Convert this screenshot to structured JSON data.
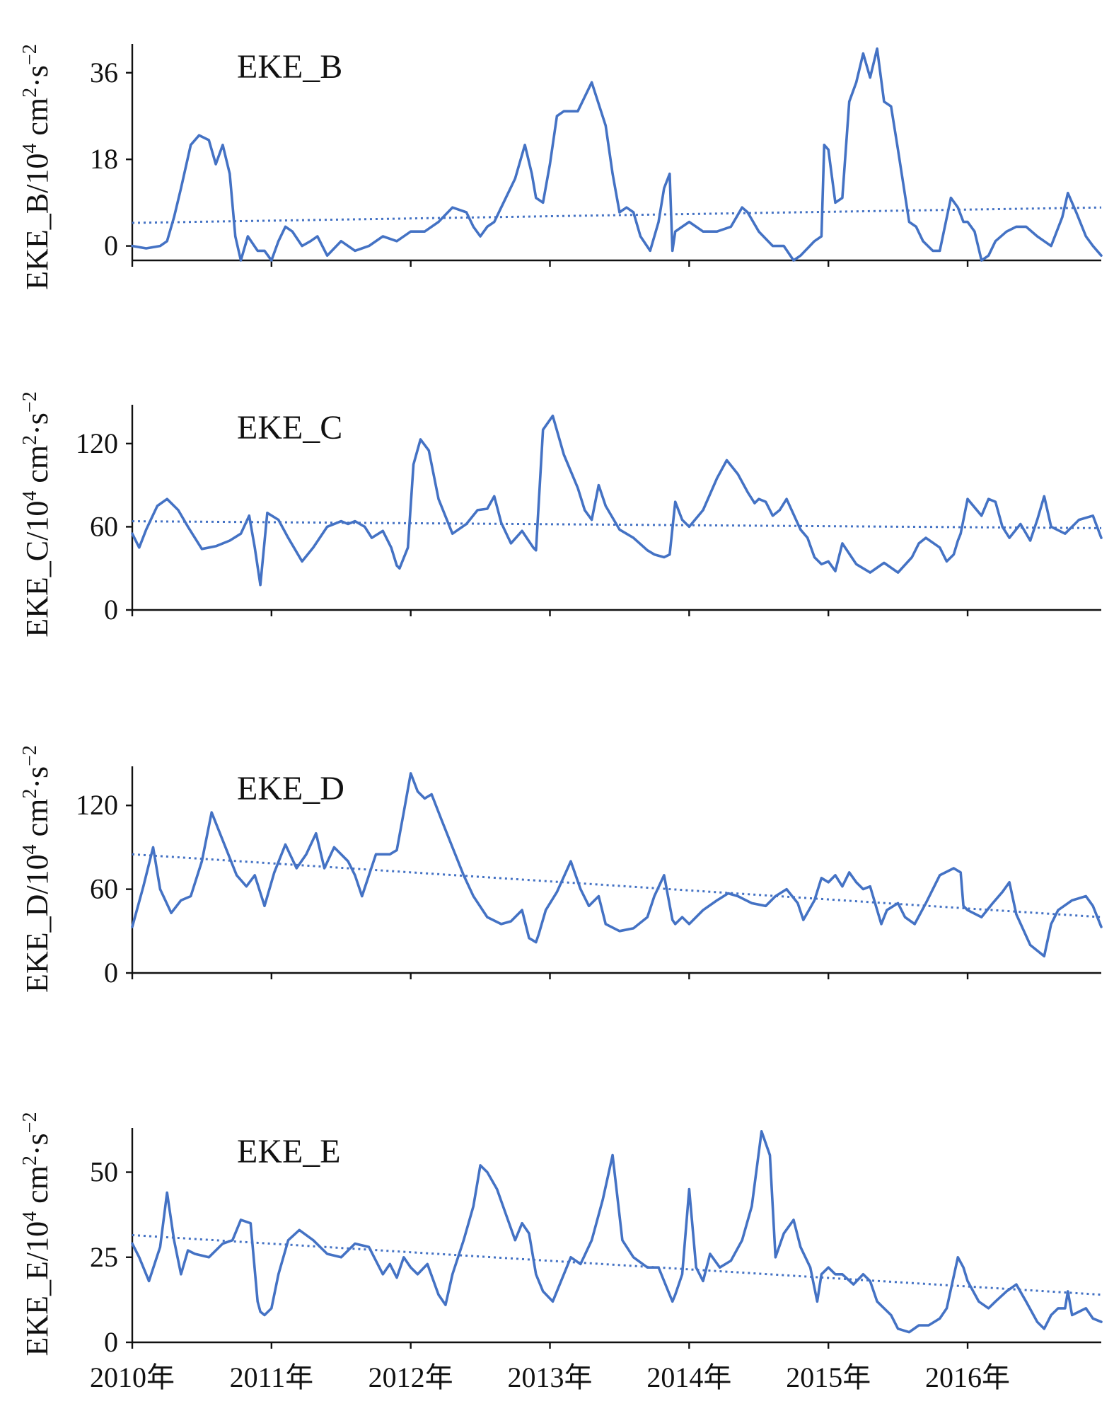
{
  "colors": {
    "series": "#4472c4",
    "axis": "#111111",
    "background": "#ffffff"
  },
  "chart_data": [
    {
      "type": "line",
      "title": "EKE_B",
      "ylabel": {
        "main": "EKE_B/10",
        "exp1": "4",
        "mid1": " cm",
        "exp2": "2",
        "mid2": "·s",
        "exp3": "−2"
      },
      "ylim": [
        -3,
        42
      ],
      "yticks": [
        0,
        18,
        36
      ],
      "xlim": [
        2010.0,
        2016.96
      ],
      "xticks": [
        2010,
        2011,
        2012,
        2013,
        2014,
        2015,
        2016
      ],
      "xtick_labels": [
        "2010年",
        "2011年",
        "2012年",
        "2013年",
        "2014年",
        "2015年",
        "2016年"
      ],
      "show_x_tick_labels": false,
      "grid": false,
      "legend": "none",
      "series": [
        {
          "x": [
            2010.0,
            2010.1,
            2010.2,
            2010.25,
            2010.3,
            2010.35,
            2010.42,
            2010.48,
            2010.55,
            2010.6,
            2010.65,
            2010.7,
            2010.74,
            2010.78,
            2010.83,
            2010.9,
            2010.95,
            2011.0,
            2011.05,
            2011.1,
            2011.15,
            2011.22,
            2011.28,
            2011.33,
            2011.4,
            2011.5,
            2011.6,
            2011.7,
            2011.8,
            2011.9,
            2012.0,
            2012.1,
            2012.2,
            2012.3,
            2012.4,
            2012.45,
            2012.5,
            2012.55,
            2012.6,
            2012.65,
            2012.75,
            2012.82,
            2012.87,
            2012.9,
            2012.95,
            2013.0,
            2013.05,
            2013.1,
            2013.2,
            2013.3,
            2013.4,
            2013.45,
            2013.5,
            2013.55,
            2013.6,
            2013.65,
            2013.72,
            2013.78,
            2013.82,
            2013.86,
            2013.88,
            2013.9,
            2013.95,
            2014.0,
            2014.05,
            2014.1,
            2014.2,
            2014.3,
            2014.38,
            2014.42,
            2014.5,
            2014.6,
            2014.68,
            2014.75,
            2014.8,
            2014.9,
            2014.95,
            2014.97,
            2015.0,
            2015.05,
            2015.1,
            2015.15,
            2015.2,
            2015.25,
            2015.3,
            2015.35,
            2015.4,
            2015.45,
            2015.5,
            2015.58,
            2015.63,
            2015.68,
            2015.75,
            2015.8,
            2015.88,
            2015.93,
            2015.97,
            2016.0,
            2016.05,
            2016.1,
            2016.15,
            2016.2,
            2016.28,
            2016.35,
            2016.42,
            2016.5,
            2016.55,
            2016.6,
            2016.68,
            2016.72,
            2016.78,
            2016.85,
            2016.9,
            2016.96
          ],
          "y": [
            0,
            -0.5,
            0,
            1,
            6,
            12,
            21,
            23,
            22,
            17,
            21,
            15,
            2,
            -3,
            2,
            -1,
            -1,
            -3,
            1,
            4,
            3,
            0,
            1,
            2,
            -2,
            1,
            -1,
            0,
            2,
            1,
            3,
            3,
            5,
            8,
            7,
            4,
            2,
            4,
            5,
            8,
            14,
            21,
            15,
            10,
            9,
            17,
            27,
            28,
            28,
            34,
            25,
            15,
            7,
            8,
            7,
            2,
            -1,
            5,
            12,
            15,
            -1,
            3,
            4,
            5,
            4,
            3,
            3,
            4,
            8,
            7,
            3,
            0,
            0,
            -3,
            -2,
            1,
            2,
            21,
            20,
            9,
            10,
            30,
            34,
            40,
            35,
            41,
            30,
            29,
            20,
            5,
            4,
            1,
            -1,
            -1,
            10,
            8,
            5,
            5,
            3,
            -3,
            -2,
            1,
            3,
            4,
            4,
            2,
            1,
            0,
            6,
            11,
            7,
            2,
            0,
            -2
          ]
        }
      ],
      "trend": {
        "y_start": 4.8,
        "y_end": 8.0
      }
    },
    {
      "type": "line",
      "title": "EKE_C",
      "ylabel": {
        "main": "EKE_C/10",
        "exp1": "4",
        "mid1": " cm",
        "exp2": "2",
        "mid2": "·s",
        "exp3": "−2"
      },
      "ylim": [
        0,
        148
      ],
      "yticks": [
        0,
        60,
        120
      ],
      "xlim": [
        2010.0,
        2016.96
      ],
      "xticks": [
        2010,
        2011,
        2012,
        2013,
        2014,
        2015,
        2016
      ],
      "xtick_labels": [
        "2010年",
        "2011年",
        "2012年",
        "2013年",
        "2014年",
        "2015年",
        "2016年"
      ],
      "show_x_tick_labels": false,
      "grid": false,
      "legend": "none",
      "series": [
        {
          "x": [
            2010.0,
            2010.05,
            2010.1,
            2010.18,
            2010.25,
            2010.33,
            2010.4,
            2010.5,
            2010.6,
            2010.7,
            2010.78,
            2010.84,
            2010.88,
            2010.92,
            2010.97,
            2011.05,
            2011.12,
            2011.22,
            2011.3,
            2011.4,
            2011.5,
            2011.55,
            2011.6,
            2011.67,
            2011.72,
            2011.8,
            2011.86,
            2011.9,
            2011.92,
            2011.98,
            2012.02,
            2012.07,
            2012.13,
            2012.2,
            2012.3,
            2012.4,
            2012.48,
            2012.55,
            2012.6,
            2012.65,
            2012.72,
            2012.8,
            2012.88,
            2012.9,
            2012.95,
            2013.02,
            2013.1,
            2013.2,
            2013.25,
            2013.3,
            2013.35,
            2013.4,
            2013.5,
            2013.6,
            2013.7,
            2013.75,
            2013.82,
            2013.86,
            2013.9,
            2013.95,
            2014.0,
            2014.1,
            2014.2,
            2014.27,
            2014.35,
            2014.42,
            2014.47,
            2014.5,
            2014.55,
            2014.6,
            2014.65,
            2014.7,
            2014.8,
            2014.85,
            2014.9,
            2014.95,
            2015.0,
            2015.05,
            2015.1,
            2015.2,
            2015.3,
            2015.4,
            2015.5,
            2015.6,
            2015.65,
            2015.7,
            2015.8,
            2015.85,
            2015.9,
            2015.93,
            2015.95,
            2016.0,
            2016.1,
            2016.15,
            2016.2,
            2016.25,
            2016.3,
            2016.38,
            2016.45,
            2016.5,
            2016.55,
            2016.6,
            2016.7,
            2016.8,
            2016.9,
            2016.96
          ],
          "y": [
            55,
            45,
            58,
            75,
            80,
            72,
            60,
            44,
            46,
            50,
            55,
            68,
            45,
            18,
            70,
            65,
            52,
            35,
            45,
            60,
            64,
            62,
            64,
            60,
            52,
            57,
            45,
            32,
            30,
            45,
            105,
            123,
            115,
            80,
            55,
            62,
            72,
            73,
            82,
            63,
            48,
            57,
            45,
            43,
            130,
            140,
            112,
            88,
            72,
            65,
            90,
            75,
            58,
            52,
            43,
            40,
            38,
            40,
            78,
            65,
            60,
            72,
            95,
            108,
            98,
            85,
            77,
            80,
            78,
            68,
            72,
            80,
            58,
            52,
            38,
            33,
            35,
            28,
            48,
            33,
            27,
            34,
            27,
            38,
            48,
            52,
            45,
            35,
            40,
            50,
            55,
            80,
            68,
            80,
            78,
            60,
            52,
            62,
            50,
            65,
            82,
            60,
            55,
            65,
            68,
            52
          ]
        }
      ],
      "trend": {
        "y_start": 64,
        "y_end": 59
      }
    },
    {
      "type": "line",
      "title": "EKE_D",
      "ylabel": {
        "main": "EKE_D/10",
        "exp1": "4",
        "mid1": " cm",
        "exp2": "2",
        "mid2": "·s",
        "exp3": "−2"
      },
      "ylim": [
        0,
        148
      ],
      "yticks": [
        0,
        60,
        120
      ],
      "xlim": [
        2010.0,
        2016.96
      ],
      "xticks": [
        2010,
        2011,
        2012,
        2013,
        2014,
        2015,
        2016
      ],
      "xtick_labels": [
        "2010年",
        "2011年",
        "2012年",
        "2013年",
        "2014年",
        "2015年",
        "2016年"
      ],
      "show_x_tick_labels": false,
      "grid": false,
      "legend": "none",
      "series": [
        {
          "x": [
            2010.0,
            2010.08,
            2010.15,
            2010.2,
            2010.28,
            2010.35,
            2010.42,
            2010.5,
            2010.57,
            2010.65,
            2010.75,
            2010.82,
            2010.88,
            2010.95,
            2011.02,
            2011.1,
            2011.18,
            2011.25,
            2011.32,
            2011.38,
            2011.45,
            2011.55,
            2011.6,
            2011.65,
            2011.7,
            2011.75,
            2011.85,
            2011.9,
            2011.95,
            2012.0,
            2012.05,
            2012.1,
            2012.15,
            2012.22,
            2012.3,
            2012.38,
            2012.45,
            2012.55,
            2012.65,
            2012.72,
            2012.8,
            2012.85,
            2012.9,
            2012.92,
            2012.97,
            2013.05,
            2013.15,
            2013.22,
            2013.28,
            2013.35,
            2013.4,
            2013.5,
            2013.6,
            2013.7,
            2013.75,
            2013.82,
            2013.88,
            2013.9,
            2013.95,
            2014.0,
            2014.1,
            2014.2,
            2014.28,
            2014.35,
            2014.45,
            2014.55,
            2014.62,
            2014.7,
            2014.78,
            2014.82,
            2014.9,
            2014.95,
            2015.0,
            2015.05,
            2015.1,
            2015.15,
            2015.2,
            2015.25,
            2015.3,
            2015.38,
            2015.42,
            2015.5,
            2015.55,
            2015.62,
            2015.7,
            2015.8,
            2015.9,
            2015.95,
            2015.97,
            2016.0,
            2016.1,
            2016.18,
            2016.25,
            2016.3,
            2016.35,
            2016.45,
            2016.55,
            2016.6,
            2016.65,
            2016.75,
            2016.85,
            2016.9,
            2016.96
          ],
          "y": [
            33,
            62,
            90,
            60,
            43,
            52,
            55,
            80,
            115,
            95,
            70,
            62,
            70,
            48,
            72,
            92,
            75,
            85,
            100,
            75,
            90,
            80,
            70,
            55,
            70,
            85,
            85,
            88,
            115,
            143,
            130,
            125,
            128,
            110,
            90,
            70,
            55,
            40,
            35,
            37,
            45,
            25,
            22,
            28,
            45,
            58,
            80,
            60,
            48,
            55,
            35,
            30,
            32,
            40,
            55,
            70,
            38,
            35,
            40,
            35,
            45,
            52,
            57,
            55,
            50,
            48,
            55,
            60,
            50,
            38,
            52,
            68,
            65,
            70,
            62,
            72,
            65,
            60,
            62,
            35,
            45,
            50,
            40,
            35,
            50,
            70,
            75,
            72,
            48,
            45,
            40,
            50,
            58,
            65,
            42,
            20,
            12,
            35,
            45,
            52,
            55,
            48,
            33
          ]
        }
      ],
      "trend": {
        "y_start": 85,
        "y_end": 40
      }
    },
    {
      "type": "line",
      "title": "EKE_E",
      "ylabel": {
        "main": "EKE_E/10",
        "exp1": "4",
        "mid1": " cm",
        "exp2": "2",
        "mid2": "·s",
        "exp3": "−2"
      },
      "ylim": [
        0,
        63
      ],
      "yticks": [
        0,
        25,
        50
      ],
      "xlim": [
        2010.0,
        2016.96
      ],
      "xticks": [
        2010,
        2011,
        2012,
        2013,
        2014,
        2015,
        2016
      ],
      "xtick_labels": [
        "2010年",
        "2011年",
        "2012年",
        "2013年",
        "2014年",
        "2015年",
        "2016年"
      ],
      "show_x_tick_labels": true,
      "grid": false,
      "legend": "none",
      "series": [
        {
          "x": [
            2010.0,
            2010.05,
            2010.12,
            2010.2,
            2010.25,
            2010.3,
            2010.35,
            2010.4,
            2010.45,
            2010.55,
            2010.65,
            2010.72,
            2010.78,
            2010.85,
            2010.9,
            2010.92,
            2010.95,
            2011.0,
            2011.05,
            2011.12,
            2011.2,
            2011.3,
            2011.4,
            2011.5,
            2011.6,
            2011.7,
            2011.8,
            2011.85,
            2011.9,
            2011.95,
            2012.0,
            2012.05,
            2012.12,
            2012.2,
            2012.25,
            2012.3,
            2012.38,
            2012.45,
            2012.5,
            2012.55,
            2012.62,
            2012.75,
            2012.8,
            2012.85,
            2012.9,
            2012.95,
            2013.02,
            2013.1,
            2013.15,
            2013.22,
            2013.3,
            2013.38,
            2013.45,
            2013.52,
            2013.6,
            2013.7,
            2013.78,
            2013.85,
            2013.88,
            2013.9,
            2013.95,
            2014.0,
            2014.05,
            2014.1,
            2014.15,
            2014.22,
            2014.3,
            2014.38,
            2014.45,
            2014.52,
            2014.58,
            2014.62,
            2014.68,
            2014.75,
            2014.8,
            2014.87,
            2014.92,
            2014.95,
            2015.0,
            2015.05,
            2015.1,
            2015.18,
            2015.25,
            2015.3,
            2015.35,
            2015.4,
            2015.45,
            2015.5,
            2015.58,
            2015.65,
            2015.72,
            2015.8,
            2015.85,
            2015.93,
            2015.97,
            2016.0,
            2016.08,
            2016.15,
            2016.2,
            2016.28,
            2016.35,
            2016.42,
            2016.5,
            2016.55,
            2016.6,
            2016.65,
            2016.7,
            2016.72,
            2016.75,
            2016.85,
            2016.9,
            2016.96
          ],
          "y": [
            29,
            25,
            18,
            28,
            44,
            30,
            20,
            27,
            26,
            25,
            29,
            30,
            36,
            35,
            12,
            9,
            8,
            10,
            20,
            30,
            33,
            30,
            26,
            25,
            29,
            28,
            20,
            23,
            19,
            25,
            22,
            20,
            23,
            14,
            11,
            20,
            30,
            40,
            52,
            50,
            45,
            30,
            35,
            32,
            20,
            15,
            12,
            20,
            25,
            23,
            30,
            42,
            55,
            30,
            25,
            22,
            22,
            15,
            12,
            14,
            20,
            45,
            22,
            18,
            26,
            22,
            24,
            30,
            40,
            62,
            55,
            25,
            32,
            36,
            28,
            22,
            12,
            20,
            22,
            20,
            20,
            17,
            20,
            18,
            12,
            10,
            8,
            4,
            3,
            5,
            5,
            7,
            10,
            25,
            22,
            18,
            12,
            10,
            12,
            15,
            17,
            12,
            6,
            4,
            8,
            10,
            10,
            15,
            8,
            10,
            7,
            6
          ]
        }
      ],
      "trend": {
        "y_start": 31.5,
        "y_end": 14
      }
    }
  ]
}
